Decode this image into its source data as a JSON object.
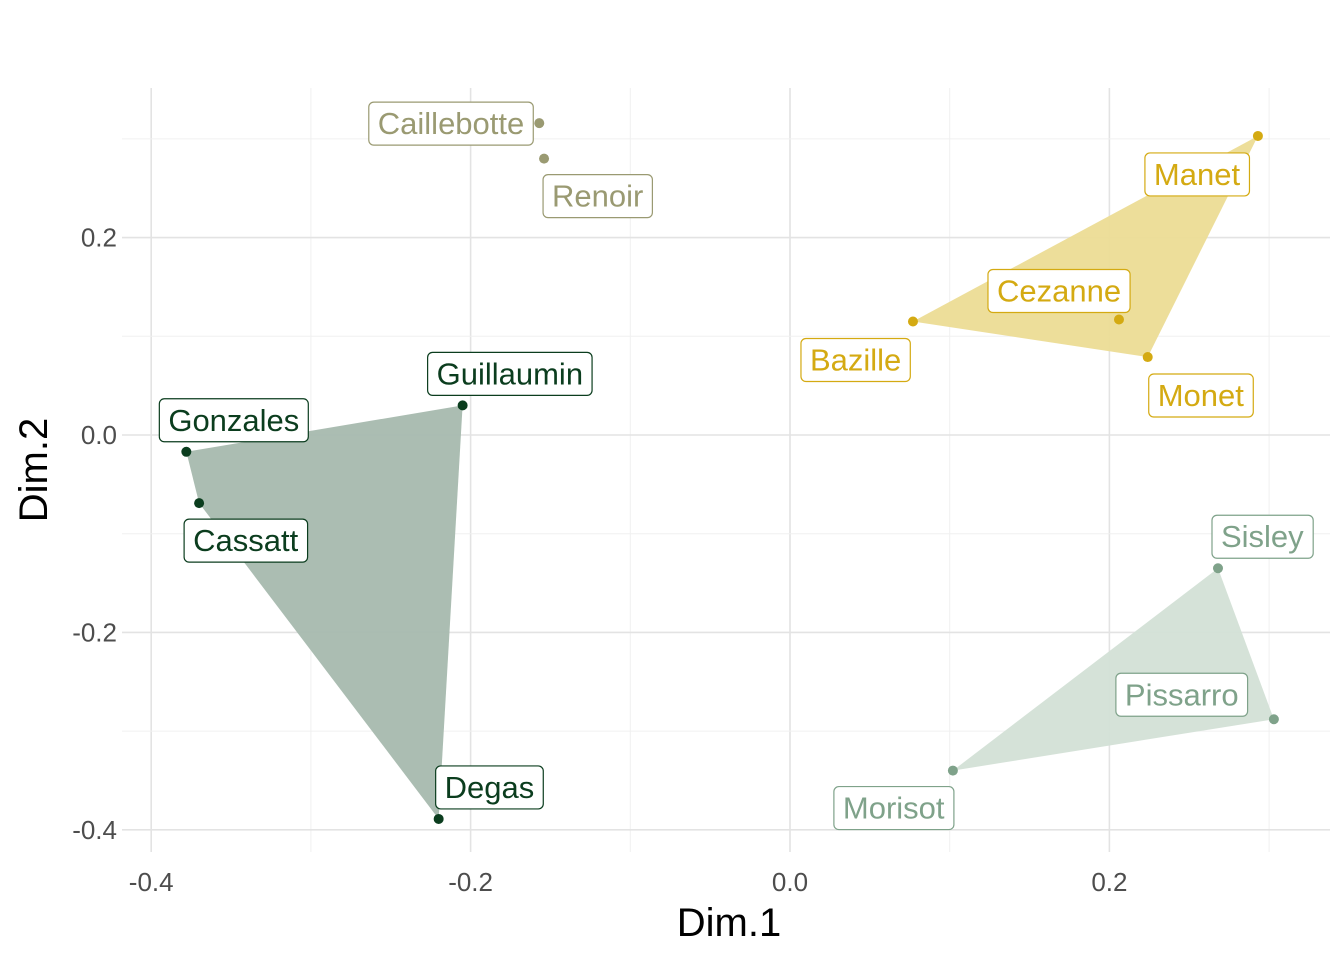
{
  "chart_data": {
    "type": "scatter",
    "xlabel": "Dim.1",
    "ylabel": "Dim.2",
    "xlim": [
      -0.4,
      0.34
    ],
    "ylim": [
      -0.41,
      0.33
    ],
    "xticks": [
      -0.4,
      -0.2,
      0.0,
      0.2
    ],
    "xtick_labels": [
      "-0.4",
      "-0.2",
      "0.0",
      "0.2"
    ],
    "yticks": [
      -0.4,
      -0.2,
      0.0,
      0.2
    ],
    "ytick_labels": [
      "-0.4",
      "-0.2",
      "0.0",
      "0.2"
    ],
    "grid": true,
    "legend": "none",
    "groups": [
      {
        "color": "#9a9a72",
        "hull": false,
        "points": [
          {
            "label": "Caillebotte",
            "x": -0.157,
            "y": 0.316
          },
          {
            "label": "Renoir",
            "x": -0.154,
            "y": 0.28
          }
        ]
      },
      {
        "color": "#d4aa12",
        "hull": true,
        "hull_color": "#ecdc95",
        "points": [
          {
            "label": "Manet",
            "x": 0.293,
            "y": 0.303
          },
          {
            "label": "Cezanne",
            "x": 0.206,
            "y": 0.117
          },
          {
            "label": "Bazille",
            "x": 0.077,
            "y": 0.115
          },
          {
            "label": "Monet",
            "x": 0.224,
            "y": 0.079
          }
        ]
      },
      {
        "color": "#0b3d1e",
        "hull": true,
        "hull_color": "#a7b9ae",
        "points": [
          {
            "label": "Guillaumin",
            "x": -0.205,
            "y": 0.03
          },
          {
            "label": "Gonzales",
            "x": -0.378,
            "y": -0.017
          },
          {
            "label": "Cassatt",
            "x": -0.37,
            "y": -0.069
          },
          {
            "label": "Degas",
            "x": -0.22,
            "y": -0.389
          }
        ]
      },
      {
        "color": "#7fa28a",
        "hull": true,
        "hull_color": "#d3e0d6",
        "points": [
          {
            "label": "Sisley",
            "x": 0.268,
            "y": -0.135
          },
          {
            "label": "Pissarro",
            "x": 0.303,
            "y": -0.288
          },
          {
            "label": "Morisot",
            "x": 0.102,
            "y": -0.34
          }
        ]
      }
    ]
  }
}
